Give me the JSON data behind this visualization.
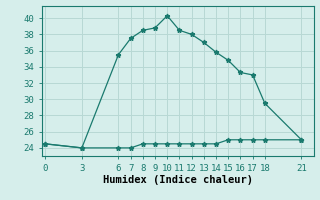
{
  "x": [
    0,
    3,
    6,
    7,
    8,
    9,
    10,
    11,
    12,
    13,
    14,
    15,
    16,
    17,
    18,
    21
  ],
  "y_line1": [
    24.5,
    24.0,
    24.0,
    24.0,
    24.5,
    24.5,
    24.5,
    24.5,
    24.5,
    24.5,
    24.5,
    25.0,
    25.0,
    25.0,
    25.0,
    25.0
  ],
  "y_line2": [
    24.5,
    24.0,
    35.5,
    37.5,
    38.5,
    38.8,
    40.3,
    38.5,
    38.0,
    37.0,
    35.8,
    34.8,
    33.3,
    33.0,
    29.5,
    25.0
  ],
  "xlabel": "Humidex (Indice chaleur)",
  "xticks": [
    0,
    3,
    6,
    7,
    8,
    9,
    10,
    11,
    12,
    13,
    14,
    15,
    16,
    17,
    18,
    21
  ],
  "yticks": [
    24,
    26,
    28,
    30,
    32,
    34,
    36,
    38,
    40
  ],
  "ylim": [
    23.0,
    41.5
  ],
  "xlim": [
    -0.3,
    22.0
  ],
  "line_color": "#1a7a6e",
  "bg_color": "#d6eeeb",
  "grid_color": "#b8d8d4",
  "marker": "*",
  "marker_size": 3.5,
  "linewidth": 0.9,
  "tick_fontsize": 6.5,
  "xlabel_fontsize": 7.5
}
